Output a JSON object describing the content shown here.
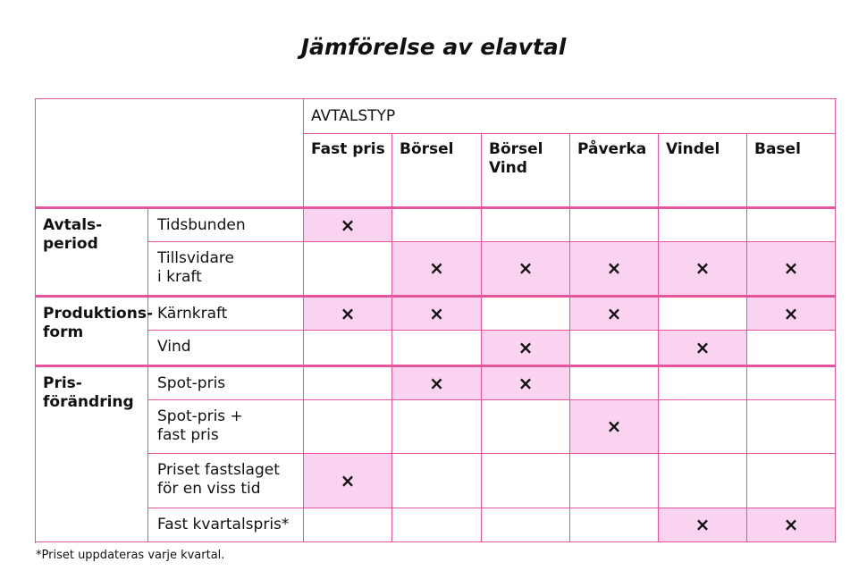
{
  "title": "Jämförelse av elavtal",
  "table": {
    "header": "AVTALSTYP",
    "columns": [
      "Fast pris",
      "Börsel",
      "Börsel\nVind",
      "Påverka",
      "Vindel",
      "Basel"
    ],
    "mark_symbol": "×",
    "groups": [
      {
        "label": "Avtals-\nperiod",
        "rows": [
          {
            "label": "Tidsbunden",
            "marks": [
              true,
              false,
              false,
              false,
              false,
              false
            ]
          },
          {
            "label": "Tillsvidare\ni kraft",
            "marks": [
              false,
              true,
              true,
              true,
              true,
              true
            ]
          }
        ]
      },
      {
        "label": "Produktions-\nform",
        "rows": [
          {
            "label": "Kärnkraft",
            "marks": [
              true,
              true,
              false,
              true,
              false,
              true
            ]
          },
          {
            "label": "Vind",
            "marks": [
              false,
              false,
              true,
              false,
              true,
              false
            ]
          }
        ]
      },
      {
        "label": "Pris-\nförändring",
        "rows": [
          {
            "label": "Spot-pris",
            "marks": [
              false,
              true,
              true,
              false,
              false,
              false
            ]
          },
          {
            "label": "Spot-pris +\nfast pris",
            "marks": [
              false,
              false,
              false,
              true,
              false,
              false
            ]
          },
          {
            "label": "Priset fastslaget\nför en viss tid",
            "marks": [
              true,
              false,
              false,
              false,
              false,
              false
            ]
          },
          {
            "label": "Fast kvartalspris*",
            "marks": [
              false,
              false,
              false,
              false,
              true,
              true
            ]
          }
        ]
      }
    ]
  },
  "footnote": "*Priset uppdateras varje kvartal."
}
